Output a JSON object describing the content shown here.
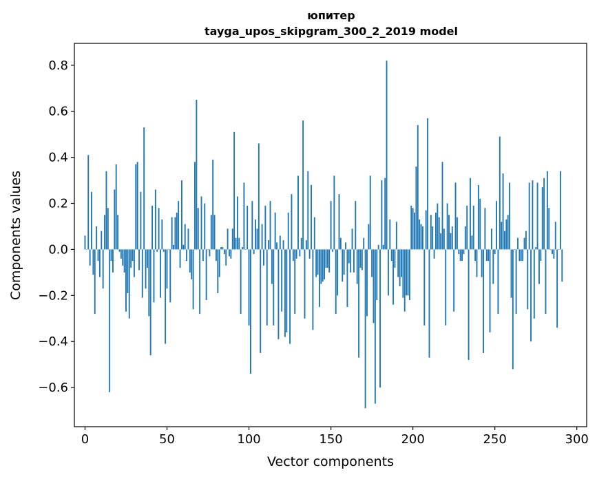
{
  "chart_data": {
    "type": "bar",
    "title": "юпитер",
    "subtitle": "tayga_upos_skipgram_300_2_2019 model",
    "xlabel": "Vector components",
    "ylabel": "Components values",
    "xlim": [
      -6.5,
      306
    ],
    "ylim": [
      -0.77,
      0.895
    ],
    "xticks": [
      0,
      50,
      100,
      150,
      200,
      250,
      300
    ],
    "xtick_labels": [
      "0",
      "50",
      "100",
      "150",
      "200",
      "250",
      "300"
    ],
    "yticks": [
      -0.6,
      -0.4,
      -0.2,
      0.0,
      0.2,
      0.4,
      0.6,
      0.8
    ],
    "ytick_labels": [
      "−0.6",
      "−0.4",
      "−0.2",
      "0.0",
      "0.2",
      "0.4",
      "0.6",
      "0.8"
    ],
    "bar_color": "#1f77b4",
    "series": [
      {
        "name": "юпитер",
        "values": [
          0.06,
          0.0,
          0.41,
          -0.07,
          0.25,
          -0.11,
          -0.28,
          0.1,
          -0.05,
          -0.12,
          0.08,
          -0.17,
          0.15,
          0.34,
          0.18,
          -0.62,
          -0.05,
          -0.1,
          0.26,
          0.37,
          0.15,
          -0.01,
          -0.04,
          -0.07,
          -0.1,
          -0.27,
          -0.19,
          -0.3,
          -0.08,
          -0.05,
          -0.12,
          0.37,
          0.38,
          -0.09,
          0.25,
          -0.21,
          0.53,
          -0.17,
          -0.08,
          -0.29,
          -0.46,
          0.19,
          -0.23,
          0.26,
          -0.01,
          0.18,
          -0.21,
          0.13,
          -0.01,
          -0.41,
          -0.17,
          0.0,
          -0.23,
          0.14,
          0.02,
          0.14,
          0.16,
          0.21,
          -0.08,
          0.3,
          0.02,
          0.11,
          -0.05,
          0.09,
          -0.1,
          -0.13,
          -0.26,
          0.38,
          0.65,
          0.18,
          -0.28,
          0.23,
          -0.05,
          0.2,
          -0.22,
          0.0,
          -0.03,
          0.15,
          0.39,
          0.15,
          -0.05,
          -0.19,
          -0.12,
          0.01,
          0.01,
          -0.02,
          -0.07,
          0.09,
          -0.03,
          -0.04,
          0.09,
          0.51,
          0.05,
          0.23,
          0.05,
          -0.28,
          0.01,
          0.29,
          0.0,
          0.19,
          -0.33,
          -0.54,
          0.21,
          -0.02,
          0.13,
          0.09,
          0.46,
          -0.45,
          0.11,
          -0.07,
          0.19,
          -0.33,
          0.04,
          0.21,
          -0.15,
          -0.33,
          0.16,
          0.03,
          -0.39,
          0.06,
          -0.27,
          0.04,
          -0.38,
          -0.36,
          0.16,
          -0.41,
          0.24,
          -0.05,
          -0.28,
          -0.04,
          0.32,
          -0.03,
          0.05,
          0.56,
          -0.3,
          0.04,
          0.34,
          -0.04,
          0.28,
          -0.35,
          0.14,
          -0.12,
          -0.11,
          -0.25,
          -0.15,
          -0.14,
          -0.13,
          -0.08,
          -0.08,
          -0.1,
          0.21,
          -0.01,
          0.32,
          -0.28,
          -0.2,
          0.24,
          0.05,
          -0.14,
          -0.11,
          0.03,
          -0.25,
          -0.06,
          -0.1,
          0.09,
          -0.1,
          0.21,
          -0.15,
          -0.47,
          -0.08,
          -0.09,
          0.05,
          -0.69,
          -0.29,
          0.11,
          0.32,
          -0.12,
          -0.32,
          -0.67,
          -0.22,
          0.02,
          -0.6,
          0.3,
          0.02,
          0.31,
          0.82,
          -0.2,
          0.13,
          -0.05,
          -0.24,
          -0.08,
          0.12,
          -0.12,
          -0.16,
          -0.12,
          -0.21,
          -0.27,
          -0.2,
          -0.2,
          -0.22,
          0.19,
          0.18,
          0.16,
          0.36,
          0.54,
          0.13,
          0.11,
          0.1,
          -0.33,
          0.17,
          0.57,
          -0.47,
          0.15,
          0.1,
          -0.04,
          0.16,
          0.2,
          0.14,
          0.07,
          0.38,
          0.09,
          -0.33,
          0.2,
          0.15,
          0.07,
          0.1,
          -0.27,
          0.29,
          0.14,
          -0.02,
          -0.05,
          -0.05,
          -0.02,
          0.1,
          0.19,
          -0.48,
          0.31,
          0.06,
          0.19,
          -0.05,
          -0.12,
          0.28,
          0.22,
          -0.12,
          -0.45,
          0.18,
          -0.05,
          -0.05,
          -0.36,
          0.09,
          -0.15,
          -0.02,
          0.21,
          -0.28,
          0.49,
          0.12,
          0.33,
          0.08,
          0.13,
          0.15,
          0.29,
          -0.21,
          -0.52,
          0.0,
          -0.28,
          0.05,
          -0.05,
          -0.05,
          -0.05,
          0.05,
          0.08,
          -0.26,
          0.29,
          -0.4,
          0.3,
          -0.3,
          0.01,
          0.29,
          -0.15,
          -0.05,
          0.27,
          0.31,
          -0.28,
          0.34,
          0.18,
          0.0,
          -0.02,
          -0.04,
          0.12,
          -0.34,
          0.0,
          0.34,
          -0.14
        ]
      }
    ]
  }
}
